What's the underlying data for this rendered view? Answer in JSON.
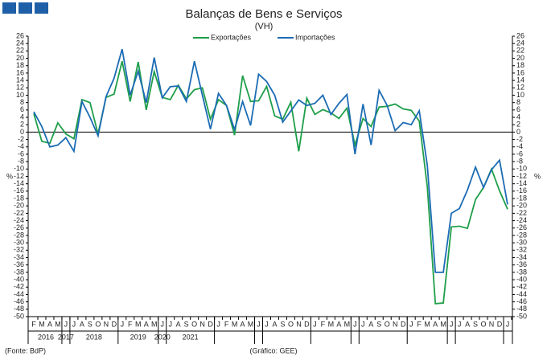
{
  "chart_data": {
    "type": "line",
    "title": "Balanças de Bens e Serviços",
    "subtitle": "(VH)",
    "y_label": "%",
    "source": "(Fonte: BdP)",
    "credit": "(Gráfico: GEE)",
    "categories": [
      "F",
      "M",
      "A",
      "M",
      "J",
      "J",
      "A",
      "S",
      "O",
      "N",
      "D",
      "J",
      "F",
      "M",
      "A",
      "M",
      "J",
      "J",
      "A",
      "S",
      "O",
      "N",
      "D",
      "J",
      "F",
      "M",
      "A",
      "M",
      "J",
      "J",
      "A",
      "S",
      "O",
      "N",
      "D",
      "J",
      "F",
      "M",
      "A",
      "M",
      "J",
      "J",
      "A",
      "S",
      "O",
      "N",
      "D",
      "J",
      "F",
      "M",
      "A",
      "M",
      "J",
      "J",
      "A",
      "S",
      "O",
      "N",
      "D",
      "J"
    ],
    "year_labels": [
      "2016",
      "2017",
      "2018",
      "2019",
      "2020",
      "2021"
    ],
    "series": [
      {
        "name": "Exportações",
        "color": "#1f9e4a",
        "values": [
          5,
          -2.5,
          -3,
          2.5,
          -0.5,
          -1.8,
          8.8,
          8,
          -0.5,
          9.4,
          10.3,
          19.2,
          8.3,
          19,
          6,
          16.4,
          9.4,
          8.8,
          12.7,
          9,
          11.5,
          12,
          3.5,
          8.8,
          7.2,
          -0.8,
          15.3,
          8.3,
          8.5,
          12.4,
          4.4,
          3.5,
          8.1,
          -5.2,
          9.2,
          4.8,
          6.1,
          5.2,
          3.7,
          6.5,
          -3.5,
          3.7,
          1.5,
          6.8,
          7,
          7.6,
          6.3,
          5.9,
          3,
          -14.8,
          -46.5,
          -46.3,
          -25.7,
          -25.5,
          -26.1,
          -18.3,
          -15,
          -10,
          -15.9,
          -20.9
        ]
      },
      {
        "name": "Importações",
        "color": "#1c6cb4",
        "values": [
          5.5,
          1.5,
          -4,
          -3.5,
          -1.5,
          -5.2,
          8.3,
          4,
          -1,
          9.6,
          14.6,
          22.5,
          10,
          16.5,
          8,
          20.2,
          9.3,
          12.3,
          12.5,
          8.3,
          19.2,
          10,
          0.8,
          10.5,
          7.2,
          0.7,
          8.3,
          1.8,
          15.7,
          13.7,
          10,
          2.7,
          5.7,
          8.7,
          7.2,
          7.8,
          10,
          4.8,
          7.8,
          10.2,
          -6,
          7.6,
          -3.5,
          11.3,
          7.2,
          0.4,
          2.6,
          2,
          5.8,
          -9,
          -38,
          -38,
          -22,
          -20.7,
          -15.7,
          -9.5,
          -15,
          -10.2,
          -7.6,
          -19.6
        ]
      }
    ],
    "ylim": [
      -50,
      26
    ],
    "yticks": [
      -50,
      -48,
      -46,
      -44,
      -42,
      -40,
      -38,
      -36,
      -34,
      -32,
      -30,
      -28,
      -26,
      -24,
      -22,
      -20,
      -18,
      -16,
      -14,
      -12,
      -10,
      -8,
      -6,
      -4,
      -2,
      0,
      2,
      4,
      6,
      8,
      10,
      12,
      14,
      16,
      18,
      20,
      22,
      24,
      26
    ],
    "legend": "top"
  }
}
